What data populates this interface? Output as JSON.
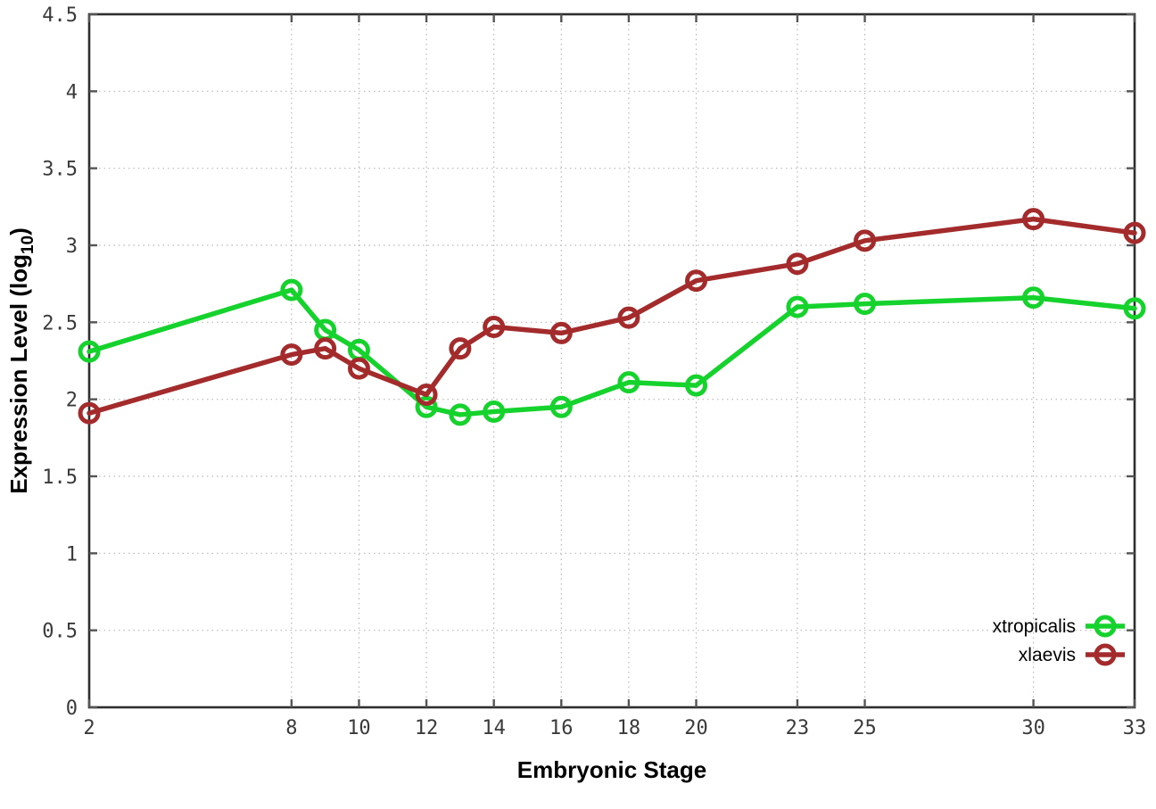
{
  "chart_data": {
    "type": "line",
    "title": "",
    "xlabel": "Embryonic Stage",
    "ylabel": {
      "prefix": "Expression Level (log",
      "subscript": "10",
      "suffix": ")"
    },
    "x": [
      2,
      8,
      9,
      10,
      12,
      13,
      14,
      16,
      18,
      20,
      23,
      25,
      30,
      33
    ],
    "series": [
      {
        "name": "xtropicalis",
        "color": "#16d22c",
        "values": [
          2.31,
          2.71,
          2.45,
          2.32,
          1.95,
          1.9,
          1.92,
          1.95,
          2.11,
          2.09,
          2.6,
          2.62,
          2.66,
          2.59
        ]
      },
      {
        "name": "xlaevis",
        "color": "#a42b2b",
        "values": [
          1.91,
          2.29,
          2.33,
          2.2,
          2.03,
          2.33,
          2.47,
          2.43,
          2.53,
          2.77,
          2.88,
          3.03,
          3.17,
          3.08
        ]
      }
    ],
    "xticks": [
      2,
      8,
      10,
      12,
      14,
      16,
      18,
      20,
      23,
      25,
      30,
      33
    ],
    "yticks": [
      0,
      0.5,
      1,
      1.5,
      2,
      2.5,
      3,
      3.5,
      4,
      4.5
    ],
    "xlim": [
      2,
      33
    ],
    "ylim": [
      0,
      4.5
    ],
    "grid": true,
    "legend_position": "bottom-right",
    "colors": {
      "border": "#2e2e2e",
      "grid": "#b8b8b8",
      "tick": "#555555",
      "background": "#ffffff"
    }
  }
}
